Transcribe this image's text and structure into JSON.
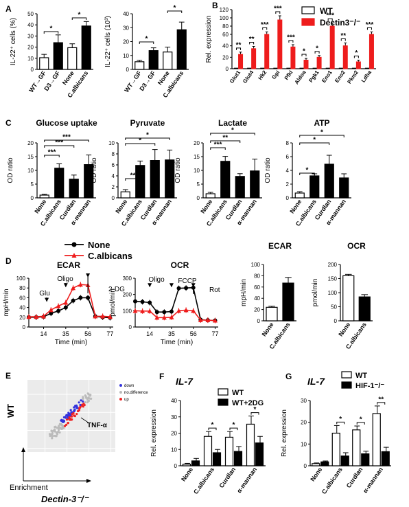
{
  "chart_data": [
    {
      "id": "A1",
      "panel_letter": "A",
      "type": "bar",
      "ylabel": "IL-22⁺ cells (%)",
      "categories": [
        "WT→GF",
        "D3→GF",
        "None",
        "C.albicans"
      ],
      "values": [
        10.5,
        24,
        19.5,
        39
      ],
      "errors": [
        3,
        7,
        3.5,
        4
      ],
      "fills": [
        "#ffffff",
        "#000000",
        "#ffffff",
        "#000000"
      ],
      "ylim": [
        0,
        50
      ],
      "yticks": [
        0,
        10,
        20,
        30,
        40,
        50
      ],
      "brackets": [
        {
          "from": 0,
          "to": 1,
          "label": "*"
        },
        {
          "from": 2,
          "to": 3,
          "label": "*"
        }
      ]
    },
    {
      "id": "A2",
      "type": "bar",
      "ylabel": "IL-22⁺ cells (10³)",
      "categories": [
        "WT→GF",
        "D3→GF",
        "None",
        "C.albicans"
      ],
      "values": [
        5.5,
        13.5,
        12.5,
        28.5
      ],
      "errors": [
        1,
        2,
        3.5,
        5.5
      ],
      "fills": [
        "#ffffff",
        "#000000",
        "#ffffff",
        "#000000"
      ],
      "ylim": [
        0,
        40
      ],
      "yticks": [
        0,
        10,
        20,
        30,
        40
      ],
      "brackets": [
        {
          "from": 0,
          "to": 1,
          "label": "*"
        },
        {
          "from": 2,
          "to": 3,
          "label": "*"
        }
      ]
    },
    {
      "id": "B",
      "panel_letter": "B",
      "type": "bar",
      "ylabel": "Rel. expression",
      "categories": [
        "Glut1",
        "Glut4",
        "Hk2",
        "Gpi",
        "Pfkl",
        "Aldoa",
        "Pgk1",
        "Eno1",
        "Eno2",
        "Pkm2",
        "Ldha"
      ],
      "series": [
        {
          "name": "WT",
          "values": [
            1,
            1,
            1,
            1,
            1,
            1,
            1,
            1,
            1,
            1,
            1
          ],
          "color": "#ffffff"
        },
        {
          "name": "Dectin3⁻/⁻",
          "values": [
            25,
            35,
            60,
            95,
            38,
            15,
            20,
            80,
            40,
            12,
            60
          ],
          "color": "#ee1c1c"
        }
      ],
      "errors": [
        4,
        4,
        6,
        10,
        4,
        3,
        3,
        8,
        5,
        3,
        6
      ],
      "yticks": [
        0,
        20,
        40,
        60,
        80,
        100,
        120
      ],
      "yscale": "broken (0-60 linear, 60-120 compressed)",
      "sig": [
        "**",
        "**",
        "***",
        "***",
        "***",
        "*",
        "*",
        "***",
        "**",
        "*",
        "***"
      ],
      "legend": "top-right"
    },
    {
      "id": "C1",
      "panel_letter": "C",
      "type": "bar",
      "title": "Glucose uptake",
      "ylabel": "OD ratio",
      "categories": [
        "None",
        "C.albicans",
        "Curdlan",
        "α-mannan"
      ],
      "values": [
        1,
        10.8,
        6.8,
        12.1
      ],
      "errors": [
        0.3,
        1.6,
        1.5,
        3.5
      ],
      "ylim": [
        0,
        20
      ],
      "yticks": [
        0,
        5,
        10,
        15,
        20
      ],
      "brackets": [
        {
          "from": 0,
          "to": 1,
          "label": "***"
        },
        {
          "from": 0,
          "to": 2,
          "label": "***"
        },
        {
          "from": 0,
          "to": 3,
          "label": "***"
        }
      ]
    },
    {
      "id": "C2",
      "type": "bar",
      "title": "Pyruvate",
      "ylabel": "OD ratio",
      "categories": [
        "None",
        "C.albicans",
        "Curdlan",
        "α-mannan"
      ],
      "values": [
        1.1,
        5.9,
        6.8,
        6.9
      ],
      "errors": [
        0.4,
        0.8,
        2.0,
        1.8
      ],
      "ylim": [
        0,
        10
      ],
      "yticks": [
        0,
        2,
        4,
        6,
        8,
        10
      ],
      "brackets": [
        {
          "from": 0,
          "to": 1,
          "label": "**"
        },
        {
          "from": 0,
          "to": 2,
          "label": "*"
        },
        {
          "from": 0,
          "to": 3,
          "label": "*"
        }
      ]
    },
    {
      "id": "C3",
      "type": "bar",
      "title": "Lactate",
      "ylabel": "OD ratio",
      "categories": [
        "None",
        "C.albicans",
        "Curdlan",
        "α-mannan"
      ],
      "values": [
        1.5,
        13.3,
        7.8,
        9.8
      ],
      "errors": [
        0.5,
        1.8,
        1.0,
        4.3
      ],
      "ylim": [
        0,
        20
      ],
      "yticks": [
        0,
        5,
        10,
        15,
        20
      ],
      "brackets": [
        {
          "from": 0,
          "to": 1,
          "label": "***"
        },
        {
          "from": 0,
          "to": 2,
          "label": "**"
        },
        {
          "from": 0,
          "to": 3,
          "label": "*"
        }
      ]
    },
    {
      "id": "C4",
      "type": "bar",
      "title": "ATP",
      "ylabel": "OD ratio",
      "categories": [
        "None",
        "C.albicans",
        "Curdlan",
        "α-mannan"
      ],
      "values": [
        0.7,
        3.2,
        4.9,
        2.9
      ],
      "errors": [
        0.2,
        0.3,
        1.3,
        0.6
      ],
      "ylim": [
        0,
        8
      ],
      "yticks": [
        0,
        2,
        4,
        6,
        8
      ],
      "brackets": [
        {
          "from": 0,
          "to": 1,
          "label": "*"
        },
        {
          "from": 0,
          "to": 2,
          "label": "*"
        },
        {
          "from": 0,
          "to": 3,
          "label": "*"
        }
      ]
    },
    {
      "id": "D1",
      "panel_letter": "D",
      "type": "line",
      "title": "ECAR",
      "xlabel": "Time (min)",
      "ylabel": "mpH/min",
      "x": [
        0,
        7,
        14,
        21,
        28,
        35,
        42,
        49,
        56,
        63,
        70,
        77
      ],
      "series": [
        {
          "name": "None",
          "color": "#000000",
          "values": [
            20,
            20,
            21,
            28,
            33,
            40,
            54,
            60,
            60,
            22,
            20,
            19
          ]
        },
        {
          "name": "C.albicans",
          "color": "#ee1c1c",
          "values": [
            21,
            21,
            22,
            35,
            43,
            50,
            80,
            87,
            86,
            22,
            22,
            21
          ]
        }
      ],
      "xticks": [
        14,
        35,
        56,
        77
      ],
      "xlim": [
        0,
        80
      ],
      "ylim": [
        0,
        100
      ],
      "yticks": [
        0,
        20,
        40,
        60,
        80,
        100
      ],
      "annotations": [
        {
          "label": "Glu",
          "x": 17,
          "y": 50
        },
        {
          "label": "Oligo",
          "x": 35,
          "y": 80
        },
        {
          "label": "2-DG",
          "x": 56,
          "y": 100
        }
      ],
      "legend": "top"
    },
    {
      "id": "D2",
      "type": "line",
      "title": "OCR",
      "xlabel": "Time (min)",
      "ylabel": "pmol/min",
      "x": [
        0,
        7,
        14,
        21,
        28,
        35,
        42,
        49,
        56,
        63,
        70,
        77
      ],
      "series": [
        {
          "name": "None",
          "color": "#000000",
          "values": [
            158,
            155,
            150,
            92,
            92,
            95,
            238,
            240,
            242,
            45,
            42,
            40
          ]
        },
        {
          "name": "C.albicans",
          "color": "#ee1c1c",
          "values": [
            100,
            98,
            98,
            58,
            58,
            60,
            100,
            104,
            100,
            43,
            42,
            40
          ]
        }
      ],
      "xticks": [
        14,
        35,
        56,
        77
      ],
      "xlim": [
        0,
        80
      ],
      "ylim": [
        0,
        300
      ],
      "yticks": [
        0,
        100,
        200,
        300
      ],
      "annotations": [
        {
          "label": "Oligo",
          "x": 14,
          "y": 240
        },
        {
          "label": "FCCP",
          "x": 35,
          "y": 240
        },
        {
          "label": "Rot",
          "x": 56,
          "y": 240
        }
      ]
    },
    {
      "id": "D3",
      "type": "bar",
      "title": "ECAR",
      "ylabel": "mpH/min",
      "categories": [
        "None",
        "C.albicans"
      ],
      "values": [
        24,
        67
      ],
      "errors": [
        2,
        10
      ],
      "fills": [
        "#ffffff",
        "#000000"
      ],
      "ylim": [
        0,
        100
      ],
      "yticks": [
        0,
        20,
        40,
        60,
        80,
        100
      ]
    },
    {
      "id": "D4",
      "type": "bar",
      "title": "OCR",
      "ylabel": "pmol/min",
      "categories": [
        "None",
        "C.albicans"
      ],
      "values": [
        160,
        85
      ],
      "errors": [
        5,
        8
      ],
      "fills": [
        "#ffffff",
        "#000000"
      ],
      "ylim": [
        0,
        200
      ],
      "yticks": [
        0,
        50,
        100,
        150,
        200
      ]
    },
    {
      "id": "E",
      "panel_letter": "E",
      "type": "scatter",
      "ylabel": "WT",
      "xlabel": "Dectin-3⁻/⁻",
      "y_arrow_label": "Enrichment",
      "legend": [
        "down",
        "no.difference",
        "up"
      ],
      "legend_colors": [
        "#3333dd",
        "#bbbbbb",
        "#ee2222"
      ],
      "annotation": "TNF-α"
    },
    {
      "id": "F",
      "panel_letter": "F",
      "type": "bar",
      "title": "IL-7",
      "ylabel": "Rel. expression",
      "categories": [
        "None",
        "C.albicans",
        "Curdlan",
        "α-mannan"
      ],
      "series": [
        {
          "name": "WT",
          "values": [
            1,
            18,
            17.5,
            25.5
          ],
          "color": "#ffffff"
        },
        {
          "name": "WT+2DG",
          "values": [
            3,
            8,
            8.8,
            14
          ],
          "color": "#000000"
        }
      ],
      "errors": [
        [
          0.5,
          3,
          3.5,
          5
        ],
        [
          1.5,
          2,
          3,
          4
        ]
      ],
      "ylim": [
        0,
        40
      ],
      "yticks": [
        0,
        10,
        20,
        30,
        40
      ],
      "sig": [
        "",
        "*",
        "*",
        "*"
      ],
      "legend": "top-right"
    },
    {
      "id": "G",
      "panel_letter": "G",
      "type": "bar",
      "title": "IL-7",
      "ylabel": "Rel. expression",
      "categories": [
        "None",
        "C.albicans",
        "Curdlan",
        "α-mannan"
      ],
      "series": [
        {
          "name": "WT",
          "values": [
            1,
            15,
            16.5,
            24
          ],
          "color": "#ffffff"
        },
        {
          "name": "HIF-1⁻/⁻",
          "values": [
            1.8,
            4.5,
            5.5,
            6.5
          ],
          "color": "#000000"
        }
      ],
      "errors": [
        [
          0.3,
          3.5,
          1.8,
          3.5
        ],
        [
          0.4,
          1.5,
          1.2,
          2
        ]
      ],
      "ylim": [
        0,
        30
      ],
      "yticks": [
        0,
        10,
        20,
        30
      ],
      "sig": [
        "",
        "*",
        "*",
        "**"
      ],
      "legend": "top-right"
    }
  ]
}
